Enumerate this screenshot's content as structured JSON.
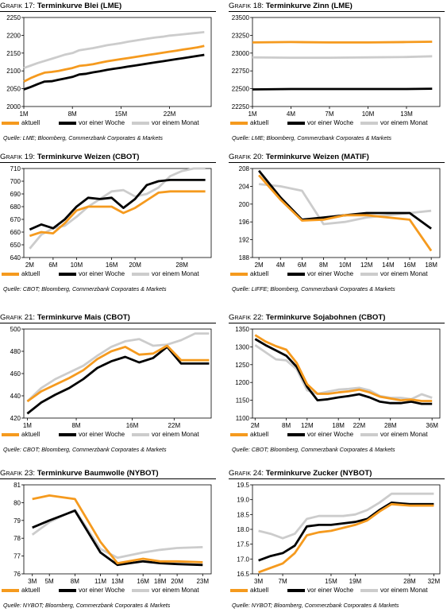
{
  "colors": {
    "aktuell": "#f59a1e",
    "woche": "#000000",
    "monat": "#cccccc"
  },
  "legend_labels": [
    "aktuell",
    "vor einer Woche",
    "vor einem Monat"
  ],
  "chart_data": [
    {
      "id": "g17",
      "type": "line",
      "title_prefix": "Grafik 17:",
      "title": "Terminkurve Blei (LME)",
      "source": "Quelle: LME; Bloomberg, Commerzbank Corporates & Markets",
      "x": [
        1,
        2,
        3,
        4,
        5,
        6,
        7,
        8,
        9,
        10,
        11,
        12,
        13,
        14,
        15,
        16,
        17,
        18,
        19,
        20,
        21,
        22,
        23,
        24,
        25,
        26,
        27
      ],
      "xticks": [
        1,
        8,
        15,
        22
      ],
      "xticklabels": [
        "1M",
        "8M",
        "15M",
        "22M"
      ],
      "xlim": [
        1,
        28
      ],
      "yticks": [
        2000,
        2050,
        2100,
        2150,
        2200,
        2250
      ],
      "ylim": [
        2000,
        2250
      ],
      "series": [
        {
          "name": "vor einem Monat",
          "values": [
            2108,
            2115,
            2122,
            2128,
            2134,
            2140,
            2146,
            2150,
            2158,
            2161,
            2164,
            2168,
            2172,
            2175,
            2178,
            2182,
            2185,
            2188,
            2191,
            2194,
            2196,
            2199,
            2201,
            2203,
            2205,
            2207,
            2209
          ]
        },
        {
          "name": "vor einer Woche",
          "values": [
            2048,
            2055,
            2063,
            2070,
            2071,
            2075,
            2079,
            2083,
            2090,
            2092,
            2096,
            2099,
            2103,
            2106,
            2109,
            2112,
            2115,
            2118,
            2121,
            2124,
            2127,
            2130,
            2133,
            2136,
            2139,
            2142,
            2145
          ]
        },
        {
          "name": "aktuell",
          "values": [
            2070,
            2080,
            2088,
            2095,
            2097,
            2100,
            2104,
            2108,
            2114,
            2116,
            2119,
            2123,
            2127,
            2130,
            2133,
            2136,
            2139,
            2142,
            2145,
            2148,
            2151,
            2154,
            2157,
            2160,
            2163,
            2166,
            2170
          ]
        }
      ]
    },
    {
      "id": "g18",
      "type": "line",
      "title_prefix": "Grafik 18:",
      "title": "Terminkurve Zinn (LME)",
      "source": "Quelle: LME; Bloomberg, Commerzbank Corporates & Markets",
      "x": [
        1,
        4,
        7,
        10,
        13,
        15
      ],
      "xticks": [
        1,
        4,
        7,
        10,
        13
      ],
      "xticklabels": [
        "1M",
        "4M",
        "7M",
        "10M",
        "13M"
      ],
      "xlim": [
        1,
        15.6
      ],
      "yticks": [
        22250,
        22500,
        22750,
        23000,
        23250,
        23500
      ],
      "ylim": [
        22250,
        23500
      ],
      "series": [
        {
          "name": "vor einem Monat",
          "values": [
            22940,
            22935,
            22935,
            22940,
            22945,
            22955
          ]
        },
        {
          "name": "vor einer Woche",
          "values": [
            22490,
            22495,
            22495,
            22495,
            22495,
            22500
          ]
        },
        {
          "name": "aktuell",
          "values": [
            23150,
            23155,
            23150,
            23150,
            23155,
            23160
          ]
        }
      ]
    },
    {
      "id": "g19",
      "type": "line",
      "title_prefix": "Grafik 19:",
      "title": "Terminkurve Weizen (CBOT)",
      "source": "Quelle: CBOT; Bloomberg, Commerzbank Corporates & Markets",
      "x": [
        2,
        4,
        6,
        8,
        10,
        12,
        14,
        16,
        18,
        20,
        22,
        24,
        26,
        28,
        30,
        32
      ],
      "xticks": [
        2,
        6,
        10,
        16,
        20,
        28
      ],
      "xticklabels": [
        "2M",
        "6M",
        "10M",
        "16M",
        "20M",
        "28M"
      ],
      "xlim": [
        1,
        33
      ],
      "yticks": [
        640,
        650,
        660,
        670,
        680,
        690,
        700,
        710
      ],
      "ylim": [
        640,
        710
      ],
      "series": [
        {
          "name": "vor einem Monat",
          "values": [
            647,
            658,
            663,
            665,
            672,
            680,
            686,
            692,
            693,
            688,
            690,
            695,
            704,
            708,
            710,
            710
          ]
        },
        {
          "name": "vor einer Woche",
          "values": [
            662,
            666,
            663,
            670,
            680,
            687,
            686,
            687,
            679,
            686,
            697,
            700,
            701,
            701,
            701,
            701
          ]
        },
        {
          "name": "aktuell",
          "values": [
            657,
            660,
            659,
            667,
            677,
            680,
            680,
            680,
            675,
            679,
            685,
            691,
            692,
            692,
            692,
            692
          ]
        }
      ]
    },
    {
      "id": "g20",
      "type": "line",
      "title_prefix": "Grafik 20:",
      "title": "Terminkurve Weizen (MATIF)",
      "source": "Quelle: LIFFE; Bloomberg, Commerzbank Corporates & Markets",
      "x": [
        2,
        4,
        6,
        8,
        10,
        12,
        14,
        16,
        18
      ],
      "xticks": [
        2,
        4,
        6,
        8,
        10,
        12,
        14,
        16,
        18
      ],
      "xticklabels": [
        "2M",
        "4M",
        "6M",
        "8M",
        "10M",
        "12M",
        "14M",
        "16M",
        "18M"
      ],
      "xlim": [
        1.4,
        18.8
      ],
      "xlabel_every": 1,
      "yticks": [
        188,
        192,
        196,
        200,
        204,
        208
      ],
      "ylim": [
        188,
        208
      ],
      "series": [
        {
          "name": "vor einem Monat",
          "values": [
            204.5,
            204,
            203,
            195.5,
            196,
            197,
            197.5,
            198,
            198.5
          ]
        },
        {
          "name": "vor einer Woche",
          "values": [
            207.5,
            201.5,
            196.5,
            197,
            197.5,
            198,
            198,
            198,
            194.5
          ]
        },
        {
          "name": "aktuell",
          "values": [
            206.5,
            201,
            196.3,
            196.5,
            197.5,
            197.5,
            197,
            196.5,
            189.5
          ]
        }
      ]
    },
    {
      "id": "g21",
      "type": "line",
      "title_prefix": "Grafik 21:",
      "title": "Terminkurve Mais (CBOT)",
      "source": "Quelle: CBOT; Bloomberg, Commerzbank Corporates & Markets",
      "x": [
        1,
        3,
        5,
        7,
        9,
        11,
        13,
        15,
        17,
        19,
        21,
        23,
        25,
        27
      ],
      "xticks": [
        1,
        8,
        16,
        22
      ],
      "xticklabels": [
        "1M",
        "8M",
        "16M",
        "22M"
      ],
      "xlim": [
        0.5,
        27.3
      ],
      "yticks": [
        420,
        440,
        460,
        480,
        500
      ],
      "ylim": [
        420,
        500
      ],
      "series": [
        {
          "name": "vor einem Monat",
          "values": [
            435,
            447,
            455,
            461,
            467,
            476,
            484,
            489,
            491,
            485,
            486,
            490,
            496,
            496
          ]
        },
        {
          "name": "vor einer Woche",
          "values": [
            424,
            434,
            441,
            447,
            455,
            465,
            471,
            475,
            470,
            474,
            484,
            469,
            469,
            469
          ]
        },
        {
          "name": "aktuell",
          "values": [
            435,
            444,
            450,
            456,
            463,
            473,
            480,
            484,
            477,
            478,
            485,
            472,
            472,
            472
          ]
        }
      ]
    },
    {
      "id": "g22",
      "type": "line",
      "title_prefix": "Grafik 22:",
      "title": "Terminkurve Sojabohnen (CBOT)",
      "source": "Quelle: CBOT; Bloomberg, Commerzbank Corporates & Markets",
      "x": [
        2,
        4,
        6,
        8,
        10,
        12,
        14,
        16,
        18,
        20,
        22,
        24,
        26,
        28,
        30,
        32,
        34,
        36
      ],
      "xticks": [
        2,
        8,
        12,
        18,
        22,
        28,
        36
      ],
      "xticklabels": [
        "2M",
        "8M",
        "12M",
        "18M",
        "22M",
        "28M",
        "36M"
      ],
      "xlim": [
        1.5,
        37.5
      ],
      "yticks": [
        1100,
        1150,
        1200,
        1250,
        1300,
        1350
      ],
      "ylim": [
        1100,
        1350
      ],
      "series": [
        {
          "name": "vor einem Monat",
          "values": [
            1305,
            1285,
            1265,
            1262,
            1237,
            1178,
            1168,
            1174,
            1180,
            1182,
            1185,
            1178,
            1162,
            1157,
            1157,
            1153,
            1167,
            1157
          ]
        },
        {
          "name": "vor einer Woche",
          "values": [
            1322,
            1305,
            1290,
            1275,
            1244,
            1188,
            1150,
            1153,
            1158,
            1162,
            1167,
            1158,
            1146,
            1142,
            1142,
            1146,
            1140,
            1140
          ]
        },
        {
          "name": "aktuell",
          "values": [
            1333,
            1315,
            1302,
            1292,
            1255,
            1195,
            1168,
            1168,
            1172,
            1175,
            1180,
            1172,
            1160,
            1155,
            1150,
            1152,
            1148,
            1148
          ]
        }
      ]
    },
    {
      "id": "g23",
      "type": "line",
      "title_prefix": "Grafik 23:",
      "title": "Terminkurve Baumwolle (NYBOT)",
      "source": "Quelle: NYBOT; Bloomberg, Commerzbank Corporates & Markets",
      "x": [
        3,
        5,
        8,
        11,
        13,
        16,
        18,
        20,
        23
      ],
      "xticks": [
        3,
        5,
        8,
        11,
        13,
        16,
        18,
        20,
        23
      ],
      "xticklabels": [
        "3M",
        "5M",
        "8M",
        "11M",
        "13M",
        "16M",
        "18M",
        "20M",
        "23M"
      ],
      "xlim": [
        2,
        24
      ],
      "yticks": [
        76,
        77,
        78,
        79,
        80,
        81
      ],
      "ylim": [
        76,
        81
      ],
      "series": [
        {
          "name": "vor einem Monat",
          "values": [
            78.2,
            78.9,
            79.6,
            77.4,
            76.9,
            77.2,
            77.35,
            77.45,
            77.5
          ]
        },
        {
          "name": "vor einer Woche",
          "values": [
            78.6,
            79.0,
            79.55,
            77.2,
            76.5,
            76.7,
            76.6,
            76.55,
            76.5
          ]
        },
        {
          "name": "aktuell",
          "values": [
            80.2,
            80.4,
            80.2,
            77.8,
            76.6,
            76.85,
            76.7,
            76.7,
            76.65
          ]
        }
      ]
    },
    {
      "id": "g24",
      "type": "line",
      "title_prefix": "Grafik 24:",
      "title": "Terminkurve Zucker (NYBOT)",
      "source": "Quelle: NYBOT; Bloomberg, Commerzbank Corporates & Markets",
      "x": [
        3,
        5,
        7,
        9,
        11,
        13,
        15,
        17,
        19,
        21,
        23,
        25,
        28,
        30,
        32
      ],
      "xticks": [
        3,
        7,
        15,
        19,
        28,
        32
      ],
      "xticklabels": [
        "3M",
        "7M",
        "15M",
        "19M",
        "28M",
        "32M"
      ],
      "xlim": [
        2,
        33
      ],
      "yticks": [
        16.5,
        17.0,
        17.5,
        18.0,
        18.5,
        19.0,
        19.5
      ],
      "ytickformat": "1",
      "ylim": [
        16.5,
        19.5
      ],
      "series": [
        {
          "name": "vor einem Monat",
          "values": [
            17.95,
            17.85,
            17.7,
            17.85,
            18.35,
            18.45,
            18.45,
            18.45,
            18.5,
            18.65,
            18.9,
            19.2,
            19.2,
            19.2,
            19.2
          ]
        },
        {
          "name": "vor einer Woche",
          "values": [
            16.95,
            17.1,
            17.2,
            17.45,
            18.1,
            18.15,
            18.15,
            18.2,
            18.25,
            18.35,
            18.65,
            18.9,
            18.85,
            18.85,
            18.85
          ]
        },
        {
          "name": "aktuell",
          "values": [
            16.55,
            16.7,
            16.85,
            17.2,
            17.8,
            17.9,
            17.95,
            18.05,
            18.15,
            18.3,
            18.6,
            18.85,
            18.8,
            18.8,
            18.8
          ]
        }
      ]
    }
  ]
}
